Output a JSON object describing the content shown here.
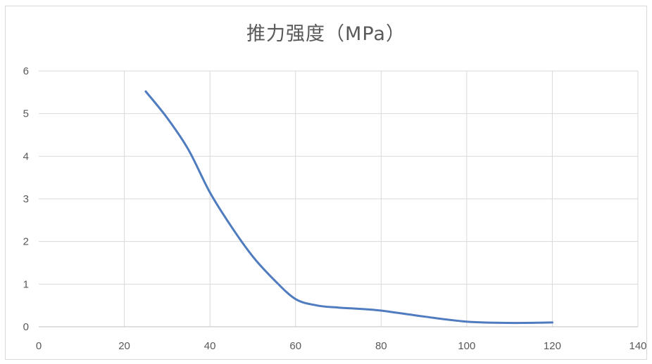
{
  "chart_data": {
    "type": "line",
    "title": "推力强度（MPa）",
    "xlabel": "",
    "ylabel": "",
    "xlim": [
      0,
      140
    ],
    "ylim": [
      0,
      6
    ],
    "x_ticks": [
      0,
      20,
      40,
      60,
      80,
      100,
      120,
      140
    ],
    "y_ticks": [
      0,
      1,
      2,
      3,
      4,
      5,
      6
    ],
    "grid": true,
    "legend": "none",
    "series": [
      {
        "color": "#4f7bbf",
        "points": [
          [
            25,
            5.52
          ],
          [
            30,
            4.9
          ],
          [
            35,
            4.15
          ],
          [
            40,
            3.15
          ],
          [
            45,
            2.35
          ],
          [
            50,
            1.65
          ],
          [
            55,
            1.1
          ],
          [
            60,
            0.65
          ],
          [
            65,
            0.5
          ],
          [
            70,
            0.45
          ],
          [
            75,
            0.42
          ],
          [
            80,
            0.38
          ],
          [
            90,
            0.24
          ],
          [
            100,
            0.12
          ],
          [
            110,
            0.09
          ],
          [
            120,
            0.1
          ]
        ]
      }
    ]
  }
}
